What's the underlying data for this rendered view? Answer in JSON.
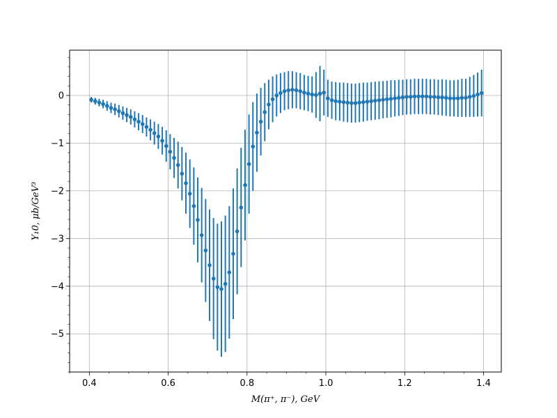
{
  "chart_data": {
    "type": "scatter",
    "title": "",
    "xlabel": "M(π⁺, π⁻), GeV",
    "ylabel": "Y₁0, μb/GeV³",
    "xlim": [
      0.35,
      1.445
    ],
    "ylim": [
      -5.8,
      0.95
    ],
    "grid": true,
    "colors": {
      "series": "#1f77b4",
      "grid": "#b0b0b0",
      "axis": "#000000"
    },
    "x_ticks": [
      0.4,
      0.6,
      0.8,
      1.0,
      1.2,
      1.4
    ],
    "x_tick_labels": [
      "0.4",
      "0.6",
      "0.8",
      "1.0",
      "1.2",
      "1.4"
    ],
    "y_ticks": [
      -5,
      -4,
      -3,
      -2,
      -1,
      0
    ],
    "y_tick_labels": [
      "−5",
      "−4",
      "−3",
      "−2",
      "−1",
      "0"
    ],
    "series": [
      {
        "x": [
          0.405,
          0.415,
          0.425,
          0.435,
          0.445,
          0.455,
          0.465,
          0.475,
          0.485,
          0.495,
          0.505,
          0.515,
          0.525,
          0.535,
          0.545,
          0.555,
          0.565,
          0.575,
          0.585,
          0.595,
          0.605,
          0.615,
          0.625,
          0.635,
          0.645,
          0.655,
          0.665,
          0.675,
          0.685,
          0.695,
          0.705,
          0.715,
          0.725,
          0.735,
          0.745,
          0.755,
          0.765,
          0.775,
          0.785,
          0.795,
          0.805,
          0.815,
          0.825,
          0.835,
          0.845,
          0.855,
          0.865,
          0.875,
          0.885,
          0.895,
          0.905,
          0.915,
          0.925,
          0.935,
          0.945,
          0.955,
          0.965,
          0.975,
          0.985,
          0.995,
          1.005,
          1.015,
          1.025,
          1.035,
          1.045,
          1.055,
          1.065,
          1.075,
          1.085,
          1.095,
          1.105,
          1.115,
          1.125,
          1.135,
          1.145,
          1.155,
          1.165,
          1.175,
          1.185,
          1.195,
          1.205,
          1.215,
          1.225,
          1.235,
          1.245,
          1.255,
          1.265,
          1.275,
          1.285,
          1.295,
          1.305,
          1.315,
          1.325,
          1.335,
          1.345,
          1.355,
          1.365,
          1.375,
          1.385,
          1.395
        ],
        "y": [
          -0.09,
          -0.12,
          -0.15,
          -0.18,
          -0.22,
          -0.26,
          -0.29,
          -0.33,
          -0.37,
          -0.41,
          -0.45,
          -0.5,
          -0.55,
          -0.6,
          -0.66,
          -0.72,
          -0.79,
          -0.86,
          -0.95,
          -1.06,
          -1.18,
          -1.31,
          -1.46,
          -1.64,
          -1.84,
          -2.06,
          -2.32,
          -2.61,
          -2.93,
          -3.25,
          -3.56,
          -3.84,
          -4.02,
          -4.06,
          -3.95,
          -3.71,
          -3.32,
          -2.85,
          -2.35,
          -1.88,
          -1.44,
          -1.07,
          -0.78,
          -0.55,
          -0.35,
          -0.19,
          -0.08,
          0.0,
          0.05,
          0.09,
          0.11,
          0.12,
          0.11,
          0.09,
          0.06,
          0.04,
          0.02,
          0.01,
          0.04,
          0.06,
          -0.06,
          -0.1,
          -0.12,
          -0.13,
          -0.14,
          -0.15,
          -0.16,
          -0.16,
          -0.15,
          -0.14,
          -0.13,
          -0.12,
          -0.11,
          -0.1,
          -0.09,
          -0.08,
          -0.07,
          -0.06,
          -0.05,
          -0.04,
          -0.03,
          -0.03,
          -0.02,
          -0.02,
          -0.02,
          -0.02,
          -0.03,
          -0.03,
          -0.04,
          -0.04,
          -0.05,
          -0.06,
          -0.06,
          -0.06,
          -0.05,
          -0.05,
          -0.03,
          -0.01,
          0.02,
          0.05
        ],
        "yerr": [
          0.06,
          0.07,
          0.08,
          0.09,
          0.1,
          0.11,
          0.12,
          0.13,
          0.14,
          0.15,
          0.16,
          0.17,
          0.18,
          0.19,
          0.2,
          0.22,
          0.24,
          0.26,
          0.29,
          0.33,
          0.37,
          0.42,
          0.49,
          0.56,
          0.64,
          0.72,
          0.81,
          0.89,
          0.99,
          1.08,
          1.17,
          1.27,
          1.33,
          1.42,
          1.43,
          1.39,
          1.37,
          1.32,
          1.25,
          1.16,
          1.04,
          0.93,
          0.82,
          0.71,
          0.61,
          0.52,
          0.48,
          0.44,
          0.42,
          0.4,
          0.4,
          0.39,
          0.38,
          0.38,
          0.37,
          0.37,
          0.38,
          0.48,
          0.58,
          0.48,
          0.39,
          0.39,
          0.4,
          0.4,
          0.41,
          0.41,
          0.41,
          0.41,
          0.41,
          0.41,
          0.4,
          0.4,
          0.4,
          0.4,
          0.39,
          0.39,
          0.39,
          0.38,
          0.38,
          0.37,
          0.37,
          0.37,
          0.37,
          0.37,
          0.37,
          0.37,
          0.37,
          0.37,
          0.37,
          0.38,
          0.38,
          0.38,
          0.38,
          0.39,
          0.4,
          0.4,
          0.42,
          0.44,
          0.46,
          0.49
        ]
      }
    ]
  }
}
